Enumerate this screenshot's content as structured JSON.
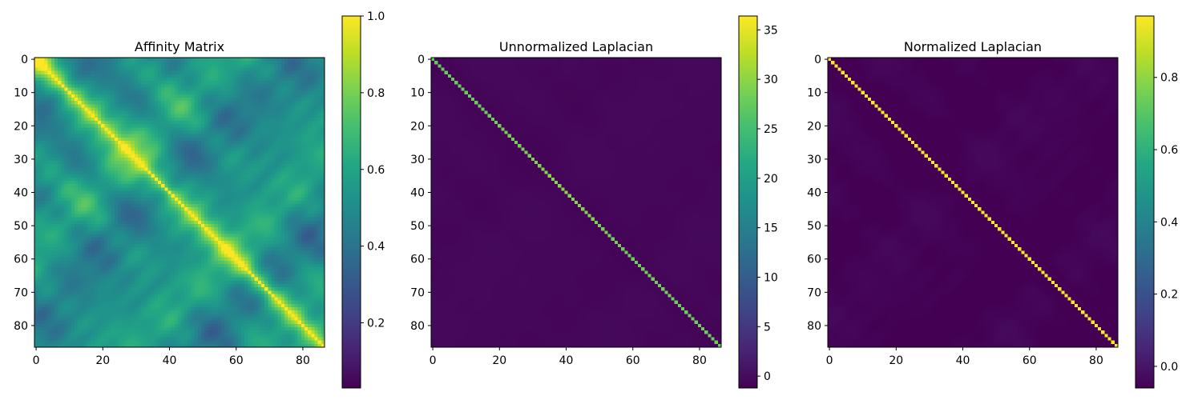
{
  "chart_data": [
    {
      "type": "heatmap",
      "title": "Affinity Matrix",
      "n": 87,
      "kind": "affinity",
      "x_ticks": [
        0,
        20,
        40,
        60,
        80
      ],
      "y_ticks": [
        0,
        10,
        20,
        30,
        40,
        50,
        60,
        70,
        80
      ],
      "colorbar": {
        "min": 0.03,
        "max": 1.0,
        "ticks": [
          0.2,
          0.4,
          0.6,
          0.8,
          1.0
        ],
        "labels": [
          "0.2",
          "0.4",
          "0.6",
          "0.8",
          "1.0"
        ]
      },
      "colormap": "viridis"
    },
    {
      "type": "heatmap",
      "title": "Unnormalized Laplacian",
      "n": 87,
      "kind": "unnormalized",
      "x_ticks": [
        0,
        20,
        40,
        60,
        80
      ],
      "y_ticks": [
        0,
        10,
        20,
        30,
        40,
        50,
        60,
        70,
        80
      ],
      "colorbar": {
        "min": -1.2,
        "max": 36.4,
        "ticks": [
          0,
          5,
          10,
          15,
          20,
          25,
          30,
          35
        ],
        "labels": [
          "0",
          "5",
          "10",
          "15",
          "20",
          "25",
          "30",
          "35"
        ]
      },
      "colormap": "viridis"
    },
    {
      "type": "heatmap",
      "title": "Normalized Laplacian",
      "n": 87,
      "kind": "normalized",
      "x_ticks": [
        0,
        20,
        40,
        60,
        80
      ],
      "y_ticks": [
        0,
        10,
        20,
        30,
        40,
        50,
        60,
        70,
        80
      ],
      "colorbar": {
        "min": -0.06,
        "max": 0.97,
        "ticks": [
          0.0,
          0.2,
          0.4,
          0.6,
          0.8
        ],
        "labels": [
          "0.0",
          "0.2",
          "0.4",
          "0.6",
          "0.8"
        ]
      },
      "colormap": "viridis"
    }
  ]
}
